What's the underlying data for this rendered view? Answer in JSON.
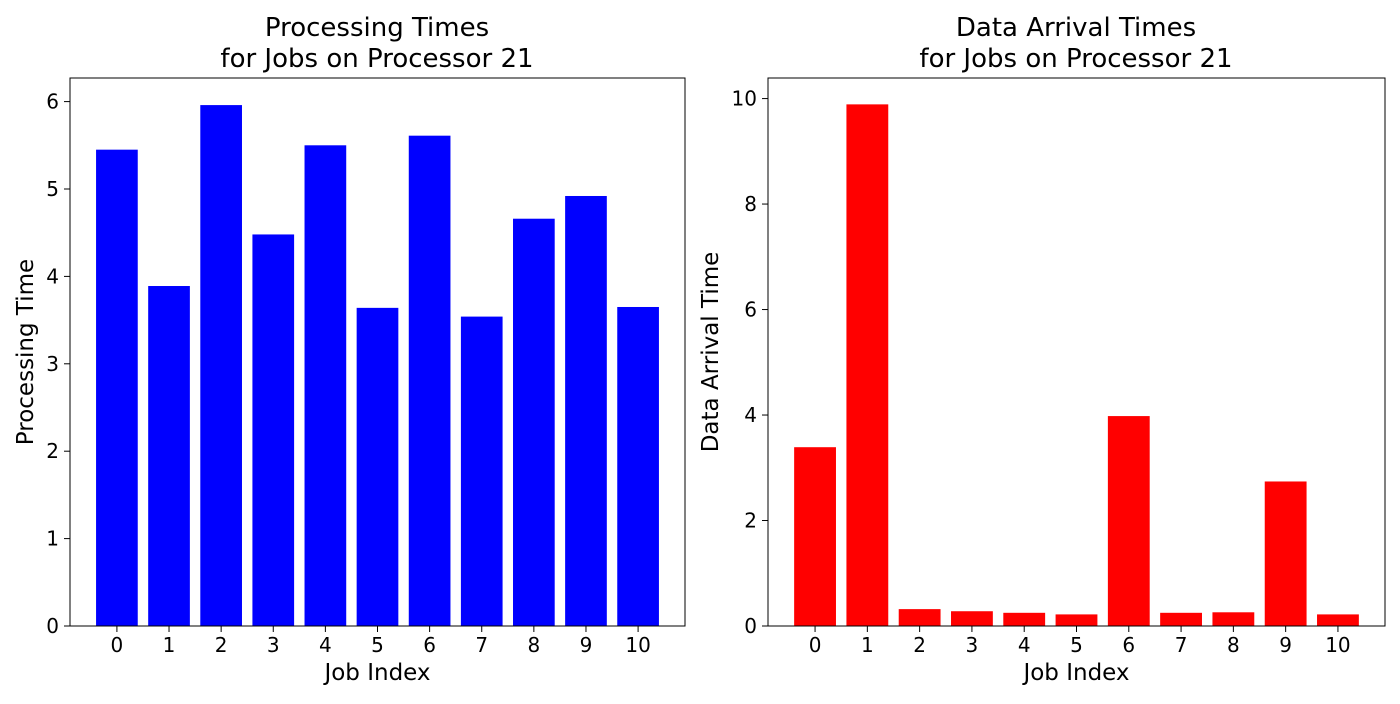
{
  "chart_data": [
    {
      "type": "bar",
      "title_lines": [
        "Processing Times",
        "for Jobs on Processor 21"
      ],
      "xlabel": "Job Index",
      "ylabel": "Processing Time",
      "categories": [
        "0",
        "1",
        "2",
        "3",
        "4",
        "5",
        "6",
        "7",
        "8",
        "9",
        "10"
      ],
      "values": [
        5.45,
        3.89,
        5.96,
        4.48,
        5.5,
        3.64,
        5.61,
        3.54,
        4.66,
        4.92,
        3.65
      ],
      "ylim": [
        0,
        6.27
      ],
      "yticks": [
        0,
        1,
        2,
        3,
        4,
        5,
        6
      ],
      "color": "#0000ff",
      "grid": false,
      "legend": "none"
    },
    {
      "type": "bar",
      "title_lines": [
        "Data Arrival Times",
        "for Jobs on Processor 21"
      ],
      "xlabel": "Job Index",
      "ylabel": "Data Arrival Time",
      "categories": [
        "0",
        "1",
        "2",
        "3",
        "4",
        "5",
        "6",
        "7",
        "8",
        "9",
        "10"
      ],
      "values": [
        3.39,
        9.89,
        0.32,
        0.28,
        0.25,
        0.22,
        3.98,
        0.25,
        0.26,
        2.74,
        0.22
      ],
      "ylim": [
        0,
        10.39
      ],
      "yticks": [
        0,
        2,
        4,
        6,
        8,
        10
      ],
      "color": "#ff0000",
      "grid": false,
      "legend": "none"
    }
  ]
}
